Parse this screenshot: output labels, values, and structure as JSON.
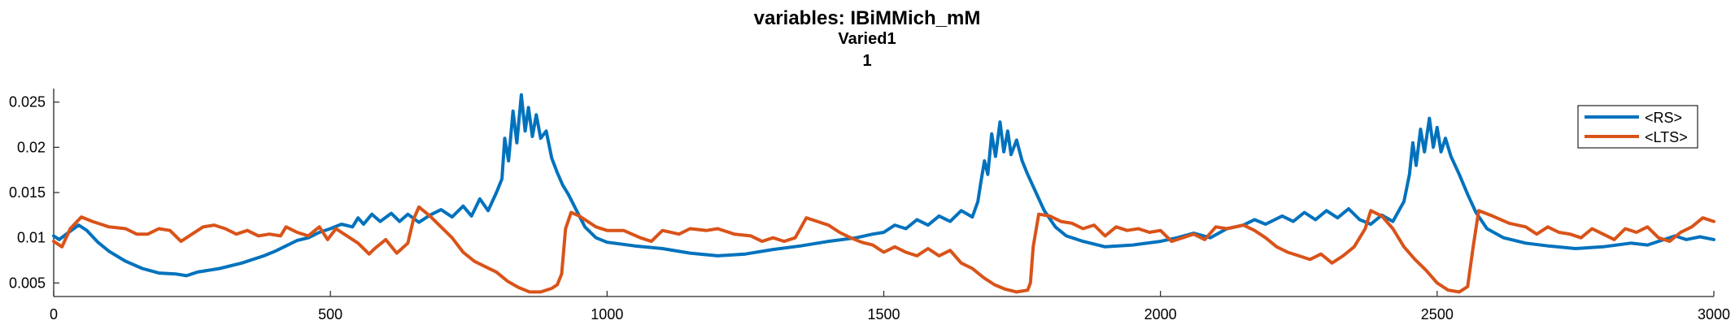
{
  "chart_data": {
    "type": "line",
    "title": "variables: IBiMMich_mM",
    "subtitle_lines": [
      "Varied1",
      "1"
    ],
    "xlabel": "",
    "ylabel": "",
    "xlim": [
      0,
      3000
    ],
    "ylim": [
      0.0035,
      0.0265
    ],
    "xticks": [
      0,
      500,
      1000,
      1500,
      2000,
      2500,
      3000
    ],
    "yticks": [
      0.005,
      0.01,
      0.015,
      0.02,
      0.025
    ],
    "ytick_labels": [
      "0.005",
      "0.01",
      "0.015",
      "0.02",
      "0.025"
    ],
    "grid": false,
    "legend_position": "top-right",
    "series": [
      {
        "name": "<RS>",
        "color": "#0072BD",
        "points": [
          [
            0,
            0.0102
          ],
          [
            10,
            0.0098
          ],
          [
            25,
            0.0105
          ],
          [
            45,
            0.0114
          ],
          [
            60,
            0.0108
          ],
          [
            80,
            0.0095
          ],
          [
            100,
            0.0085
          ],
          [
            130,
            0.0074
          ],
          [
            160,
            0.0066
          ],
          [
            190,
            0.0061
          ],
          [
            220,
            0.006
          ],
          [
            240,
            0.0058
          ],
          [
            260,
            0.0062
          ],
          [
            300,
            0.0066
          ],
          [
            340,
            0.0072
          ],
          [
            380,
            0.008
          ],
          [
            400,
            0.0085
          ],
          [
            420,
            0.0091
          ],
          [
            440,
            0.0097
          ],
          [
            460,
            0.01
          ],
          [
            480,
            0.0106
          ],
          [
            500,
            0.011
          ],
          [
            520,
            0.0115
          ],
          [
            540,
            0.0112
          ],
          [
            550,
            0.0122
          ],
          [
            560,
            0.0115
          ],
          [
            575,
            0.0126
          ],
          [
            590,
            0.0118
          ],
          [
            610,
            0.0127
          ],
          [
            625,
            0.0118
          ],
          [
            640,
            0.0126
          ],
          [
            660,
            0.0117
          ],
          [
            680,
            0.0125
          ],
          [
            700,
            0.0131
          ],
          [
            720,
            0.0123
          ],
          [
            740,
            0.0135
          ],
          [
            755,
            0.0124
          ],
          [
            770,
            0.0143
          ],
          [
            785,
            0.013
          ],
          [
            800,
            0.015
          ],
          [
            810,
            0.0165
          ],
          [
            815,
            0.021
          ],
          [
            822,
            0.0185
          ],
          [
            830,
            0.024
          ],
          [
            837,
            0.0205
          ],
          [
            845,
            0.0258
          ],
          [
            852,
            0.0218
          ],
          [
            858,
            0.0244
          ],
          [
            865,
            0.0212
          ],
          [
            872,
            0.0236
          ],
          [
            880,
            0.021
          ],
          [
            890,
            0.0218
          ],
          [
            900,
            0.0188
          ],
          [
            910,
            0.0172
          ],
          [
            920,
            0.0158
          ],
          [
            930,
            0.0148
          ],
          [
            945,
            0.013
          ],
          [
            960,
            0.0112
          ],
          [
            980,
            0.01
          ],
          [
            1000,
            0.0095
          ],
          [
            1050,
            0.0091
          ],
          [
            1100,
            0.0088
          ],
          [
            1150,
            0.0083
          ],
          [
            1200,
            0.008
          ],
          [
            1250,
            0.0082
          ],
          [
            1300,
            0.0087
          ],
          [
            1350,
            0.0091
          ],
          [
            1400,
            0.0096
          ],
          [
            1450,
            0.01
          ],
          [
            1480,
            0.0104
          ],
          [
            1500,
            0.0106
          ],
          [
            1520,
            0.0114
          ],
          [
            1540,
            0.011
          ],
          [
            1560,
            0.012
          ],
          [
            1580,
            0.0114
          ],
          [
            1600,
            0.0124
          ],
          [
            1620,
            0.0118
          ],
          [
            1640,
            0.013
          ],
          [
            1660,
            0.0123
          ],
          [
            1670,
            0.014
          ],
          [
            1675,
            0.016
          ],
          [
            1682,
            0.0185
          ],
          [
            1688,
            0.017
          ],
          [
            1695,
            0.0215
          ],
          [
            1702,
            0.019
          ],
          [
            1710,
            0.0228
          ],
          [
            1717,
            0.0195
          ],
          [
            1724,
            0.0218
          ],
          [
            1730,
            0.0192
          ],
          [
            1740,
            0.0208
          ],
          [
            1750,
            0.0185
          ],
          [
            1760,
            0.017
          ],
          [
            1775,
            0.015
          ],
          [
            1790,
            0.013
          ],
          [
            1810,
            0.0112
          ],
          [
            1830,
            0.0102
          ],
          [
            1860,
            0.0096
          ],
          [
            1900,
            0.009
          ],
          [
            1950,
            0.0092
          ],
          [
            2000,
            0.0096
          ],
          [
            2030,
            0.01
          ],
          [
            2060,
            0.0105
          ],
          [
            2090,
            0.01
          ],
          [
            2120,
            0.011
          ],
          [
            2150,
            0.0114
          ],
          [
            2170,
            0.012
          ],
          [
            2190,
            0.0115
          ],
          [
            2220,
            0.0124
          ],
          [
            2240,
            0.0118
          ],
          [
            2260,
            0.0128
          ],
          [
            2280,
            0.012
          ],
          [
            2300,
            0.013
          ],
          [
            2320,
            0.0122
          ],
          [
            2340,
            0.0132
          ],
          [
            2360,
            0.012
          ],
          [
            2380,
            0.0115
          ],
          [
            2400,
            0.0125
          ],
          [
            2420,
            0.0118
          ],
          [
            2440,
            0.014
          ],
          [
            2450,
            0.017
          ],
          [
            2456,
            0.0205
          ],
          [
            2462,
            0.018
          ],
          [
            2470,
            0.022
          ],
          [
            2477,
            0.0195
          ],
          [
            2486,
            0.0232
          ],
          [
            2493,
            0.02
          ],
          [
            2500,
            0.0222
          ],
          [
            2507,
            0.0195
          ],
          [
            2515,
            0.021
          ],
          [
            2525,
            0.019
          ],
          [
            2540,
            0.017
          ],
          [
            2555,
            0.0148
          ],
          [
            2570,
            0.0128
          ],
          [
            2590,
            0.011
          ],
          [
            2620,
            0.01
          ],
          [
            2660,
            0.0094
          ],
          [
            2700,
            0.0091
          ],
          [
            2750,
            0.0088
          ],
          [
            2800,
            0.009
          ],
          [
            2850,
            0.0094
          ],
          [
            2880,
            0.0092
          ],
          [
            2910,
            0.0098
          ],
          [
            2930,
            0.0102
          ],
          [
            2950,
            0.0098
          ],
          [
            2975,
            0.0101
          ],
          [
            3000,
            0.0098
          ]
        ]
      },
      {
        "name": "<LTS>",
        "color": "#D95319",
        "points": [
          [
            0,
            0.0096
          ],
          [
            15,
            0.009
          ],
          [
            30,
            0.011
          ],
          [
            50,
            0.0123
          ],
          [
            70,
            0.0118
          ],
          [
            100,
            0.0112
          ],
          [
            130,
            0.011
          ],
          [
            150,
            0.0104
          ],
          [
            170,
            0.0104
          ],
          [
            190,
            0.011
          ],
          [
            210,
            0.0108
          ],
          [
            230,
            0.0096
          ],
          [
            250,
            0.0104
          ],
          [
            270,
            0.0112
          ],
          [
            290,
            0.0114
          ],
          [
            310,
            0.011
          ],
          [
            330,
            0.0104
          ],
          [
            350,
            0.0108
          ],
          [
            370,
            0.0102
          ],
          [
            390,
            0.0104
          ],
          [
            410,
            0.0102
          ],
          [
            420,
            0.0112
          ],
          [
            440,
            0.0106
          ],
          [
            460,
            0.0102
          ],
          [
            480,
            0.0112
          ],
          [
            495,
            0.0098
          ],
          [
            510,
            0.011
          ],
          [
            530,
            0.0102
          ],
          [
            550,
            0.0094
          ],
          [
            570,
            0.0082
          ],
          [
            580,
            0.0088
          ],
          [
            600,
            0.0098
          ],
          [
            620,
            0.0083
          ],
          [
            640,
            0.0094
          ],
          [
            650,
            0.012
          ],
          [
            660,
            0.0134
          ],
          [
            680,
            0.0124
          ],
          [
            700,
            0.0112
          ],
          [
            720,
            0.01
          ],
          [
            740,
            0.0084
          ],
          [
            760,
            0.0074
          ],
          [
            780,
            0.0068
          ],
          [
            800,
            0.0062
          ],
          [
            820,
            0.0052
          ],
          [
            840,
            0.0045
          ],
          [
            860,
            0.004
          ],
          [
            880,
            0.004
          ],
          [
            900,
            0.0044
          ],
          [
            910,
            0.0048
          ],
          [
            918,
            0.006
          ],
          [
            925,
            0.011
          ],
          [
            935,
            0.0128
          ],
          [
            950,
            0.0124
          ],
          [
            980,
            0.0112
          ],
          [
            1000,
            0.0108
          ],
          [
            1030,
            0.0108
          ],
          [
            1060,
            0.01
          ],
          [
            1080,
            0.0096
          ],
          [
            1100,
            0.0108
          ],
          [
            1130,
            0.0104
          ],
          [
            1150,
            0.011
          ],
          [
            1180,
            0.0108
          ],
          [
            1200,
            0.011
          ],
          [
            1230,
            0.0104
          ],
          [
            1260,
            0.0102
          ],
          [
            1280,
            0.0096
          ],
          [
            1300,
            0.01
          ],
          [
            1320,
            0.0096
          ],
          [
            1340,
            0.01
          ],
          [
            1360,
            0.0122
          ],
          [
            1380,
            0.0118
          ],
          [
            1400,
            0.0114
          ],
          [
            1420,
            0.0106
          ],
          [
            1440,
            0.01
          ],
          [
            1460,
            0.0095
          ],
          [
            1480,
            0.0092
          ],
          [
            1500,
            0.0084
          ],
          [
            1520,
            0.009
          ],
          [
            1540,
            0.0084
          ],
          [
            1560,
            0.008
          ],
          [
            1580,
            0.0088
          ],
          [
            1600,
            0.008
          ],
          [
            1620,
            0.0086
          ],
          [
            1640,
            0.0072
          ],
          [
            1660,
            0.0066
          ],
          [
            1680,
            0.0056
          ],
          [
            1700,
            0.0048
          ],
          [
            1720,
            0.0043
          ],
          [
            1740,
            0.004
          ],
          [
            1760,
            0.0042
          ],
          [
            1765,
            0.005
          ],
          [
            1770,
            0.009
          ],
          [
            1780,
            0.0126
          ],
          [
            1800,
            0.0124
          ],
          [
            1820,
            0.0118
          ],
          [
            1840,
            0.0116
          ],
          [
            1860,
            0.011
          ],
          [
            1880,
            0.0114
          ],
          [
            1900,
            0.0102
          ],
          [
            1920,
            0.0112
          ],
          [
            1940,
            0.0108
          ],
          [
            1960,
            0.011
          ],
          [
            1980,
            0.0106
          ],
          [
            2000,
            0.0108
          ],
          [
            2020,
            0.0096
          ],
          [
            2040,
            0.01
          ],
          [
            2060,
            0.0104
          ],
          [
            2080,
            0.0098
          ],
          [
            2100,
            0.0112
          ],
          [
            2120,
            0.011
          ],
          [
            2150,
            0.0114
          ],
          [
            2170,
            0.0108
          ],
          [
            2190,
            0.01
          ],
          [
            2210,
            0.009
          ],
          [
            2230,
            0.0084
          ],
          [
            2250,
            0.008
          ],
          [
            2270,
            0.0076
          ],
          [
            2290,
            0.0082
          ],
          [
            2310,
            0.0072
          ],
          [
            2330,
            0.008
          ],
          [
            2350,
            0.009
          ],
          [
            2370,
            0.011
          ],
          [
            2380,
            0.013
          ],
          [
            2400,
            0.0124
          ],
          [
            2420,
            0.011
          ],
          [
            2440,
            0.009
          ],
          [
            2460,
            0.0076
          ],
          [
            2480,
            0.0064
          ],
          [
            2500,
            0.005
          ],
          [
            2520,
            0.0042
          ],
          [
            2540,
            0.004
          ],
          [
            2555,
            0.0046
          ],
          [
            2565,
            0.009
          ],
          [
            2575,
            0.013
          ],
          [
            2600,
            0.0124
          ],
          [
            2630,
            0.0116
          ],
          [
            2660,
            0.0112
          ],
          [
            2680,
            0.0104
          ],
          [
            2700,
            0.0112
          ],
          [
            2720,
            0.0106
          ],
          [
            2740,
            0.0104
          ],
          [
            2760,
            0.01
          ],
          [
            2780,
            0.011
          ],
          [
            2800,
            0.0104
          ],
          [
            2820,
            0.0098
          ],
          [
            2840,
            0.011
          ],
          [
            2860,
            0.0106
          ],
          [
            2880,
            0.0112
          ],
          [
            2900,
            0.01
          ],
          [
            2920,
            0.0096
          ],
          [
            2940,
            0.0106
          ],
          [
            2960,
            0.0112
          ],
          [
            2980,
            0.0122
          ],
          [
            3000,
            0.0118
          ]
        ]
      }
    ]
  }
}
